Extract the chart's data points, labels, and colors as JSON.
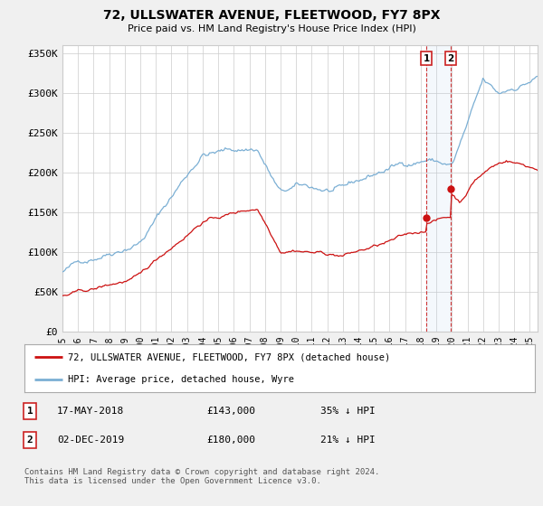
{
  "title": "72, ULLSWATER AVENUE, FLEETWOOD, FY7 8PX",
  "subtitle": "Price paid vs. HM Land Registry's House Price Index (HPI)",
  "ylabel_ticks": [
    "£0",
    "£50K",
    "£100K",
    "£150K",
    "£200K",
    "£250K",
    "£300K",
    "£350K"
  ],
  "ytick_values": [
    0,
    50000,
    100000,
    150000,
    200000,
    250000,
    300000,
    350000
  ],
  "ylim": [
    0,
    360000
  ],
  "legend_line1": "72, ULLSWATER AVENUE, FLEETWOOD, FY7 8PX (detached house)",
  "legend_line2": "HPI: Average price, detached house, Wyre",
  "transaction1_date": "17-MAY-2018",
  "transaction1_price": "£143,000",
  "transaction1_hpi": "35% ↓ HPI",
  "transaction2_date": "02-DEC-2019",
  "transaction2_price": "£180,000",
  "transaction2_hpi": "21% ↓ HPI",
  "footer": "Contains HM Land Registry data © Crown copyright and database right 2024.\nThis data is licensed under the Open Government Licence v3.0.",
  "hpi_color": "#7bafd4",
  "price_color": "#cc1111",
  "background_color": "#f0f0f0",
  "plot_bg_color": "#ffffff",
  "grid_color": "#cccccc",
  "sale1_year": 2018.37,
  "sale2_year": 2019.92,
  "sale1_price_val": 143000,
  "sale2_price_val": 180000,
  "sale1_hpi_val": 220000,
  "sale2_hpi_val": 225000,
  "xtick_years": [
    1995,
    1996,
    1997,
    1998,
    1999,
    2000,
    2001,
    2002,
    2003,
    2004,
    2005,
    2006,
    2007,
    2008,
    2009,
    2010,
    2011,
    2012,
    2013,
    2014,
    2015,
    2016,
    2017,
    2018,
    2019,
    2020,
    2021,
    2022,
    2023,
    2024,
    2025
  ]
}
